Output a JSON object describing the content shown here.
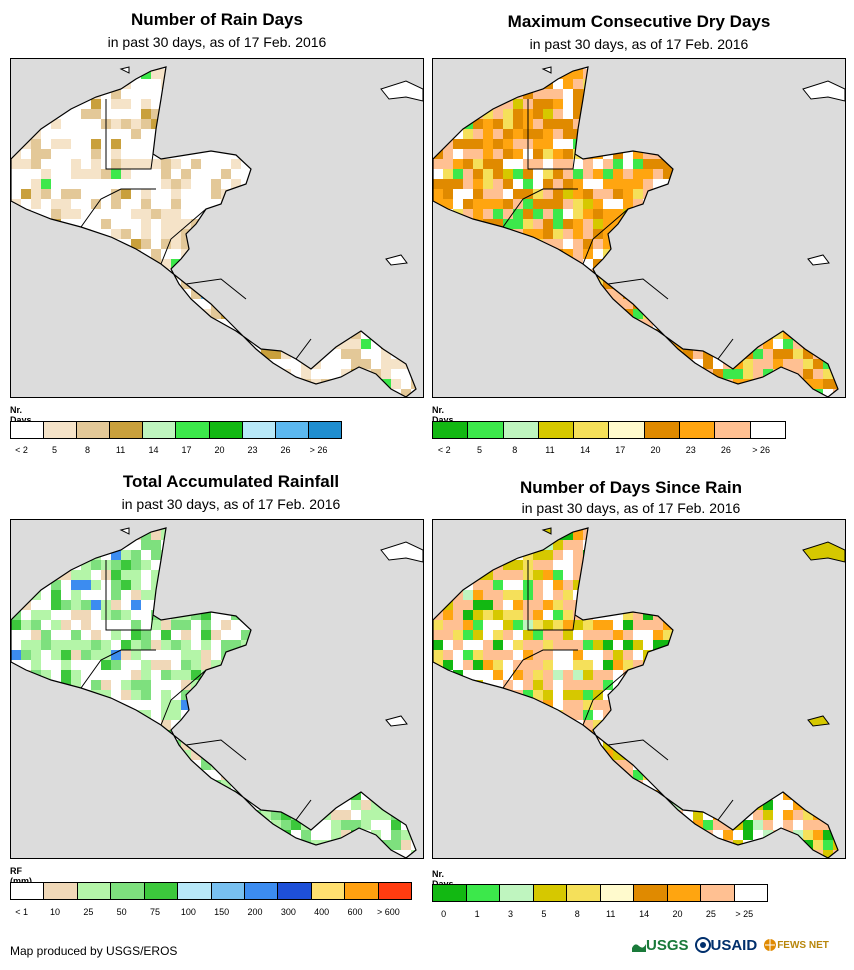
{
  "panels": [
    {
      "title": "Number of Rain Days",
      "subtitle": "in past 30 days, as of 17 Feb. 2016",
      "legend_title": "Nr. Days",
      "legend_colors": [
        "#ffffff",
        "#f5e3c8",
        "#e3c898",
        "#c9a03c",
        "#bff5bf",
        "#3ce84b",
        "#12b812",
        "#b8e8f8",
        "#5cb8f0",
        "#1f8ed0"
      ],
      "legend_labels": [
        "< 2",
        "5",
        "8",
        "11",
        "14",
        "17",
        "20",
        "23",
        "26",
        "> 26"
      ],
      "pixel_palette": [
        "#ffffff",
        "#f5e3c8",
        "#e3c898",
        "#c9a03c",
        "#3ce84b",
        "#5cb8f0"
      ],
      "pixel_weights": [
        0.55,
        0.25,
        0.14,
        0.04,
        0.015,
        0.005
      ]
    },
    {
      "title": "Maximum Consecutive Dry Days",
      "subtitle": "in past 30 days, as of 17 Feb. 2016",
      "legend_title": "Nr. Days",
      "legend_colors": [
        "#12b812",
        "#3ce84b",
        "#bff5bf",
        "#d6c800",
        "#f5e05a",
        "#fffacd",
        "#e08a00",
        "#ffa510",
        "#ffc092",
        "#ffffff"
      ],
      "legend_labels": [
        "< 2",
        "5",
        "8",
        "11",
        "14",
        "17",
        "20",
        "23",
        "26",
        "> 26"
      ],
      "pixel_palette": [
        "#ffc092",
        "#e08a00",
        "#ffa510",
        "#ffffff",
        "#f5e05a",
        "#3ce84b",
        "#d6c800"
      ],
      "pixel_weights": [
        0.32,
        0.22,
        0.18,
        0.12,
        0.08,
        0.05,
        0.03
      ]
    },
    {
      "title": "Total Accumulated Rainfall",
      "subtitle": "in past 30 days, as of 17 Feb. 2016",
      "legend_title": "RF (mm)",
      "legend_colors": [
        "#ffffff",
        "#f0d8b8",
        "#b4f5a8",
        "#7ee07e",
        "#3cc83c",
        "#b8e8f8",
        "#78c0f0",
        "#3c8cf0",
        "#1e50d8",
        "#ffe070",
        "#ffa010",
        "#ff3c10"
      ],
      "legend_labels": [
        "< 1",
        "10",
        "25",
        "50",
        "75",
        "100",
        "150",
        "200",
        "300",
        "400",
        "600",
        "> 600"
      ],
      "pixel_palette": [
        "#ffffff",
        "#b4f5a8",
        "#7ee07e",
        "#f0d8b8",
        "#3cc83c",
        "#3c8cf0"
      ],
      "pixel_weights": [
        0.35,
        0.28,
        0.18,
        0.1,
        0.07,
        0.02
      ]
    },
    {
      "title": "Number of Days Since Rain",
      "subtitle": "in past 30 days, as of 17 Feb. 2016",
      "legend_title": "Nr. Days",
      "legend_colors": [
        "#12b812",
        "#3ce84b",
        "#bff5bf",
        "#d6c800",
        "#f5e05a",
        "#fffacd",
        "#e08a00",
        "#ffa510",
        "#ffc092",
        "#ffffff"
      ],
      "legend_labels": [
        "0",
        "1",
        "3",
        "5",
        "8",
        "11",
        "14",
        "20",
        "25",
        "> 25"
      ],
      "pixel_palette": [
        "#ffc092",
        "#ffffff",
        "#f5e05a",
        "#ffa510",
        "#d6c800",
        "#12b812",
        "#3ce84b",
        "#bff5bf"
      ],
      "pixel_weights": [
        0.3,
        0.18,
        0.14,
        0.12,
        0.1,
        0.07,
        0.05,
        0.04
      ]
    }
  ],
  "footer": {
    "credit": "Map produced by USGS/EROS",
    "logos": [
      "USGS",
      "USAID",
      "FEWS NET"
    ]
  }
}
